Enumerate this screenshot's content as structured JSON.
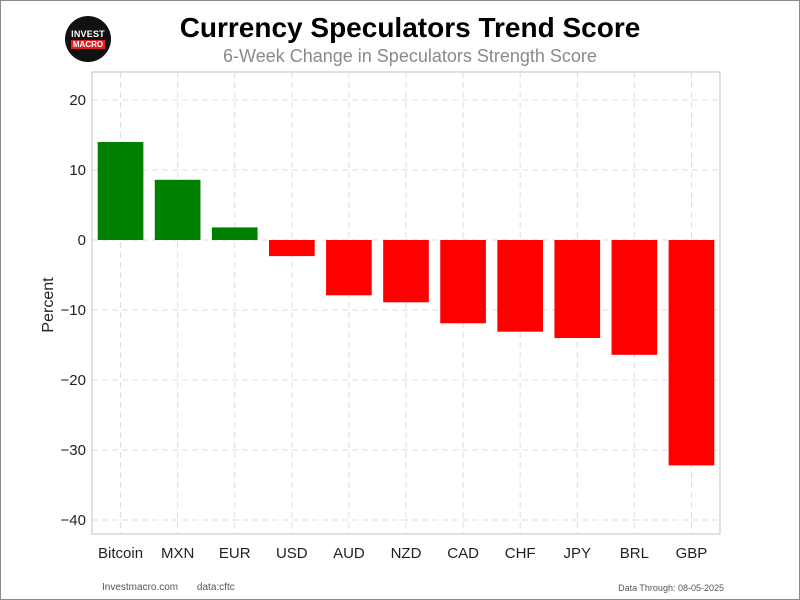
{
  "header": {
    "title": "Currency Speculators Trend Score",
    "subtitle": "6-Week Change in Speculators Strength Score"
  },
  "logo": {
    "line1": "INVEST",
    "line2": "MACRO"
  },
  "footer": {
    "site": "Investmacro.com",
    "source": "data:cftc",
    "data_through": "Data Through: 08-05-2025"
  },
  "chart_data": {
    "type": "bar",
    "title": "Currency Speculators Trend Score",
    "subtitle": "6-Week Change in Speculators Strength Score",
    "xlabel": "",
    "ylabel": "Percent",
    "categories": [
      "Bitcoin",
      "MXN",
      "EUR",
      "USD",
      "AUD",
      "NZD",
      "CAD",
      "CHF",
      "JPY",
      "BRL",
      "GBP"
    ],
    "values": [
      14.0,
      8.6,
      1.8,
      -2.3,
      -7.9,
      -8.9,
      -11.9,
      -13.1,
      -14.0,
      -16.4,
      -32.2
    ],
    "ylim": [
      -42,
      24
    ],
    "yticks": [
      20,
      10,
      0,
      -10,
      -20,
      -30,
      -40
    ],
    "grid": true,
    "colors": {
      "positive": "#008000",
      "negative": "#ff0000"
    }
  }
}
